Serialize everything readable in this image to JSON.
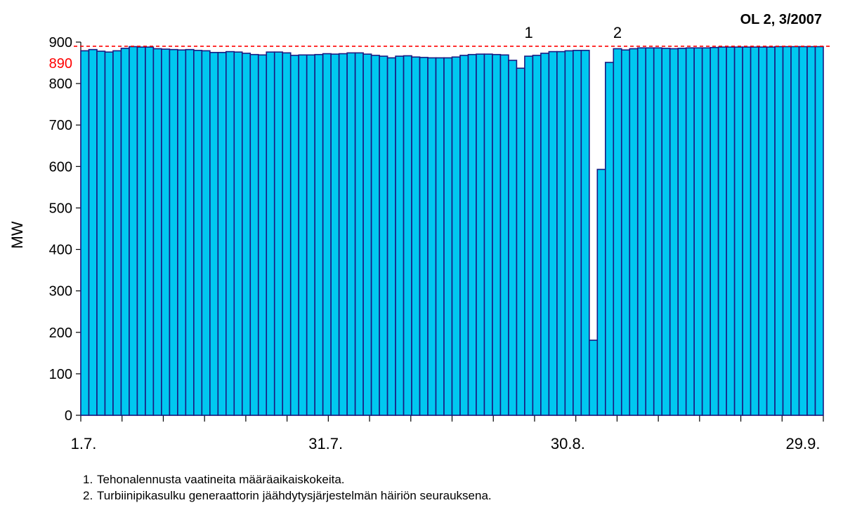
{
  "chart_data": {
    "type": "bar",
    "title": "OL 2, 3/2007",
    "ylabel": "MW",
    "ylim": [
      0,
      900
    ],
    "yticks": [
      0,
      100,
      200,
      300,
      400,
      500,
      600,
      700,
      800,
      900
    ],
    "x_tick_labels": [
      "1.7.",
      "31.7.",
      "30.8.",
      "29.9."
    ],
    "reference_line": {
      "value": 890,
      "label": "890",
      "color": "#ff0000"
    },
    "annotations": [
      {
        "text": "1",
        "category_index": 55
      },
      {
        "text": "2",
        "category_index": 66
      }
    ],
    "bar_fill": "#00c8f0",
    "bar_edge": "#1a1a80",
    "values": [
      879,
      882,
      878,
      876,
      879,
      885,
      889,
      888,
      888,
      884,
      883,
      882,
      881,
      882,
      880,
      879,
      875,
      875,
      877,
      876,
      873,
      870,
      869,
      876,
      876,
      874,
      868,
      869,
      869,
      870,
      872,
      871,
      872,
      874,
      874,
      871,
      868,
      866,
      862,
      866,
      867,
      864,
      863,
      862,
      862,
      862,
      864,
      868,
      870,
      871,
      871,
      870,
      869,
      856,
      837,
      866,
      868,
      873,
      877,
      877,
      879,
      880,
      880,
      181,
      593,
      851,
      884,
      881,
      884,
      886,
      886,
      886,
      885,
      884,
      885,
      886,
      886,
      886,
      887,
      888,
      888,
      888,
      888,
      888,
      888,
      888,
      889,
      889,
      889,
      889,
      889,
      889
    ]
  },
  "footnotes": [
    {
      "num": "1.",
      "text": "Tehonalennusta vaatineita määräaikaiskokeita."
    },
    {
      "num": "2.",
      "text": "Turbiinipikasulku generaattorin jäähdytysjärjestelmän häiriön seurauksena."
    }
  ]
}
